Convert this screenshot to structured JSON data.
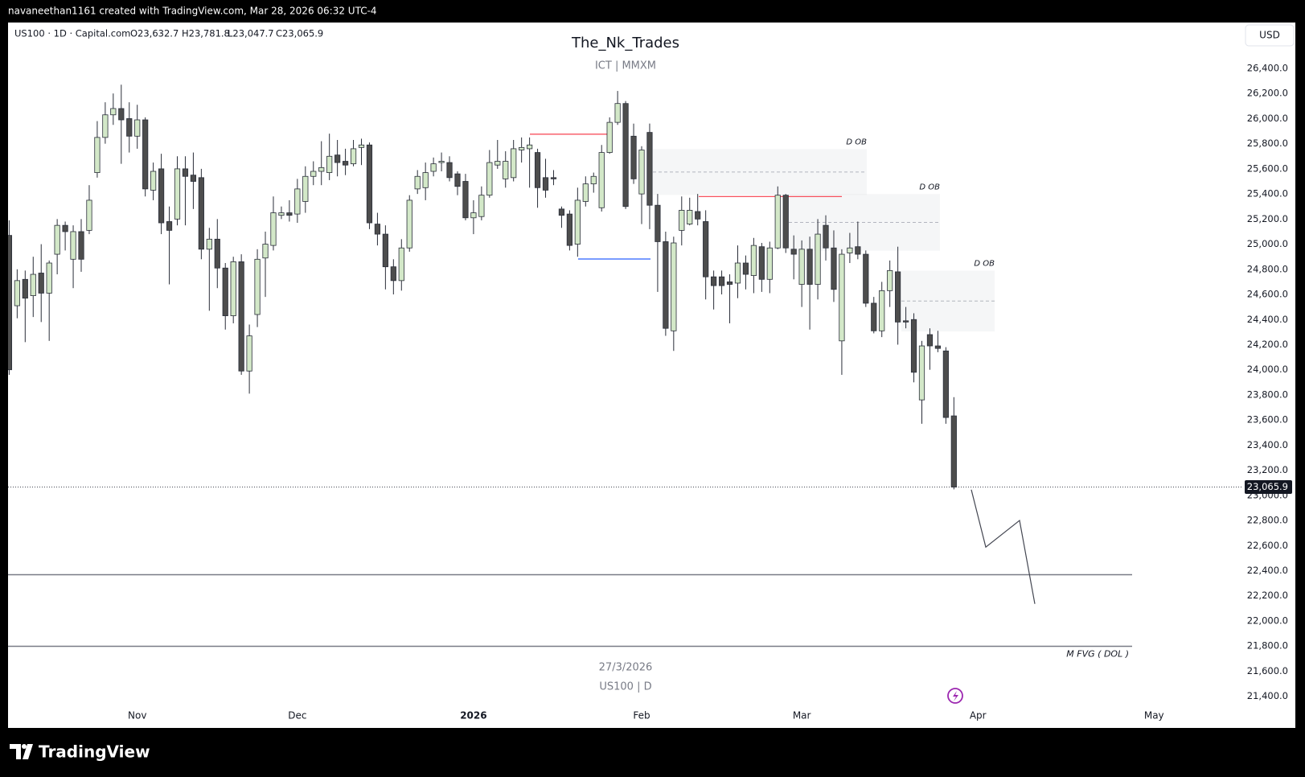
{
  "header": {
    "caption": "navaneethan1161 created with TradingView.com, Mar 28, 2026 06:32 UTC-4",
    "brand": "TradingView"
  },
  "chart_data": {
    "type": "candlestick",
    "symbol": "US100 · 1D · Capital.com",
    "last_bar_labels": [
      "O23,632.7",
      "H23,781.8",
      "L23,047.7",
      "C23,065.9"
    ],
    "title": "The_Nk_Trades",
    "subtitle": "ICT  |  MMXM",
    "date_caption": "27/3/2026",
    "symbol_caption": "US100 | D",
    "currency": "USD",
    "categories": [
      null,
      null,
      null,
      null,
      null,
      null,
      null,
      null,
      null,
      null,
      null,
      null,
      null,
      null,
      null,
      null,
      "Nov",
      null,
      null,
      null,
      null,
      null,
      null,
      null,
      null,
      null,
      null,
      null,
      null,
      null,
      null,
      null,
      null,
      null,
      null,
      null,
      "Dec",
      null,
      null,
      null,
      null,
      null,
      null,
      null,
      null,
      null,
      null,
      null,
      null,
      null,
      null,
      null,
      null,
      null,
      null,
      null,
      null,
      null,
      "2026",
      null,
      null,
      null,
      null,
      null,
      null,
      null,
      null,
      null,
      null,
      null,
      null,
      null,
      null,
      null,
      null,
      null,
      null,
      null,
      null,
      "Feb",
      null,
      null,
      null,
      null,
      null,
      null,
      null,
      null,
      null,
      null,
      null,
      null,
      null,
      null,
      null,
      null,
      null,
      null,
      null,
      "Mar",
      null,
      null,
      null,
      null,
      null,
      null,
      null,
      null,
      null,
      null,
      null,
      null,
      null,
      null,
      null,
      null,
      null,
      null,
      null,
      null,
      null,
      "Apr",
      null,
      null,
      null,
      null,
      null,
      null,
      null,
      null,
      null,
      null,
      null,
      null,
      null,
      null,
      null,
      null,
      null,
      null,
      null,
      null,
      null,
      "May"
    ],
    "open": [
      25070,
      24510,
      24720,
      24590,
      24770,
      24610,
      24920,
      25150,
      24880,
      25100,
      25110,
      25570,
      25850,
      26030,
      26080,
      26000,
      25860,
      25990,
      25430,
      25600,
      25180,
      25200,
      25600,
      25550,
      25530,
      24960,
      25040,
      24810,
      24430,
      24860,
      23990,
      24440,
      24890,
      24990,
      25230,
      25250,
      25240,
      25340,
      25540,
      25580,
      25570,
      25710,
      25660,
      25640,
      25770,
      25790,
      25160,
      25080,
      24820,
      24710,
      24970,
      25440,
      25450,
      25580,
      25650,
      25650,
      25560,
      25500,
      25210,
      25220,
      25390,
      25630,
      25520,
      25530,
      25750,
      25760,
      25730,
      25530,
      25530,
      25280,
      25240,
      25000,
      25340,
      25480,
      25290,
      25730,
      25970,
      26120,
      25860,
      25400,
      25890,
      25310,
      25020,
      24310,
      25110,
      25160,
      25260,
      25180,
      24740,
      24740,
      24700,
      24690,
      24850,
      24750,
      24980,
      24720,
      24970,
      25390,
      24960,
      24680,
      24960,
      24680,
      25150,
      24970,
      24230,
      24930,
      24980,
      24920,
      24530,
      24310,
      24630,
      24780,
      24390,
      24400,
      23760,
      24280,
      24190,
      24150,
      23632.7,
      null,
      null,
      null,
      null,
      null,
      null,
      null,
      null,
      null,
      null,
      null,
      null,
      null,
      null,
      null,
      null,
      null,
      null,
      null,
      null,
      null,
      null,
      null,
      null,
      null
    ],
    "high": [
      25190,
      24800,
      24790,
      24900,
      25000,
      24870,
      25200,
      25180,
      25150,
      25200,
      25470,
      25980,
      26130,
      26200,
      26270,
      26130,
      26110,
      26010,
      25650,
      25720,
      25300,
      25700,
      25700,
      25730,
      25600,
      25130,
      25200,
      24850,
      24900,
      24920,
      24360,
      24960,
      25100,
      25380,
      25300,
      25350,
      25520,
      25620,
      25660,
      25820,
      25880,
      25830,
      25760,
      25830,
      25840,
      25810,
      25250,
      25150,
      24880,
      25040,
      25390,
      25590,
      25650,
      25690,
      25730,
      25700,
      25580,
      25560,
      25350,
      25460,
      25750,
      25830,
      25740,
      25830,
      25850,
      25850,
      25760,
      25680,
      25590,
      25300,
      25270,
      25450,
      25540,
      25570,
      25790,
      26010,
      26220,
      26140,
      25960,
      25780,
      25960,
      25400,
      25100,
      25060,
      25380,
      25370,
      25400,
      25270,
      24790,
      24790,
      24760,
      24990,
      24910,
      25050,
      25010,
      25020,
      25460,
      25400,
      25070,
      25030,
      25060,
      25200,
      25230,
      25110,
      24960,
      25090,
      25180,
      24950,
      24580,
      24700,
      24870,
      24980,
      24500,
      24450,
      24230,
      24330,
      24310,
      24180,
      23781.8,
      null,
      null,
      null,
      null,
      null,
      null,
      null,
      null,
      null,
      null,
      null,
      null,
      null,
      null,
      null,
      null,
      null,
      null,
      null,
      null,
      null,
      null,
      null,
      null,
      null
    ],
    "low": [
      23960,
      24410,
      24220,
      24420,
      24380,
      24230,
      24760,
      24950,
      24650,
      24780,
      25080,
      25530,
      25800,
      25950,
      25640,
      25730,
      25760,
      25380,
      25350,
      25080,
      24680,
      25150,
      25150,
      25280,
      24880,
      24470,
      24650,
      24320,
      24370,
      23960,
      23810,
      24340,
      24580,
      24950,
      25200,
      25180,
      25170,
      25250,
      25470,
      25470,
      25510,
      25540,
      25550,
      25620,
      25630,
      25120,
      24990,
      24640,
      24600,
      24630,
      24940,
      25400,
      25350,
      25540,
      25580,
      25500,
      25390,
      25190,
      25080,
      25190,
      25370,
      25600,
      25450,
      25500,
      25650,
      25450,
      25290,
      25370,
      25470,
      25130,
      24950,
      24900,
      25300,
      25410,
      25260,
      25720,
      25950,
      25280,
      25480,
      25160,
      25120,
      24620,
      24270,
      24150,
      24990,
      25150,
      25150,
      24560,
      24480,
      24600,
      24370,
      24570,
      24640,
      24610,
      24620,
      24610,
      24960,
      24930,
      24720,
      24500,
      24320,
      24560,
      24870,
      24540,
      23960,
      24850,
      24880,
      24500,
      24290,
      24260,
      24500,
      24200,
      24330,
      23900,
      23570,
      24000,
      24140,
      23570,
      23047.7,
      null,
      null,
      null,
      null,
      null,
      null,
      null,
      null,
      null,
      null,
      null,
      null,
      null,
      null,
      null,
      null,
      null,
      null,
      null,
      null,
      null,
      null,
      null,
      null,
      null
    ],
    "close": [
      24000,
      24710,
      24570,
      24760,
      24610,
      24850,
      25150,
      25100,
      25100,
      24880,
      25350,
      25850,
      26030,
      26080,
      25990,
      25860,
      25990,
      25440,
      25580,
      25170,
      25110,
      25600,
      25540,
      25500,
      24960,
      25040,
      24810,
      24430,
      24860,
      23990,
      24270,
      24880,
      25000,
      25250,
      25250,
      25230,
      25440,
      25540,
      25580,
      25610,
      25700,
      25650,
      25630,
      25760,
      25790,
      25170,
      25080,
      24820,
      24710,
      24970,
      25350,
      25540,
      25570,
      25640,
      25660,
      25530,
      25460,
      25210,
      25250,
      25390,
      25650,
      25660,
      25660,
      25760,
      25770,
      25790,
      25450,
      25430,
      25520,
      25230,
      24990,
      25350,
      25480,
      25540,
      25730,
      25970,
      26120,
      25300,
      25520,
      25750,
      25310,
      25020,
      24330,
      25010,
      25270,
      25270,
      25200,
      24740,
      24670,
      24670,
      24680,
      24850,
      24760,
      24990,
      24720,
      24970,
      25390,
      24970,
      24920,
      24960,
      24680,
      25080,
      24970,
      24640,
      24920,
      24970,
      24920,
      24530,
      24310,
      24630,
      24790,
      24380,
      24380,
      23980,
      24190,
      24190,
      24170,
      23620,
      23065.9,
      null,
      null,
      null,
      null,
      null,
      null,
      null,
      null,
      null,
      null,
      null,
      null,
      null,
      null,
      null,
      null,
      null,
      null,
      null,
      null,
      null,
      null,
      null,
      null,
      null
    ],
    "bull_color": "#d3e8c8",
    "bear_color": "#4d4d4d",
    "last_price": {
      "value": 23065.9,
      "label": "23,065.9"
    },
    "ylim": [
      21148,
      26765
    ],
    "yticks": [
      {
        "value": 21400,
        "label": "21,400.0"
      },
      {
        "value": 21600,
        "label": "21,600.0"
      },
      {
        "value": 21800,
        "label": "21,800.0"
      },
      {
        "value": 22000,
        "label": "22,000.0"
      },
      {
        "value": 22200,
        "label": "22,200.0"
      },
      {
        "value": 22400,
        "label": "22,400.0"
      },
      {
        "value": 22600,
        "label": "22,600.0"
      },
      {
        "value": 22800,
        "label": "22,800.0"
      },
      {
        "value": 23000,
        "label": "23,000.0"
      },
      {
        "value": 23200,
        "label": "23,200.0"
      },
      {
        "value": 23400,
        "label": "23,400.0"
      },
      {
        "value": 23600,
        "label": "23,600.0"
      },
      {
        "value": 23800,
        "label": "23,800.0"
      },
      {
        "value": 24000,
        "label": "24,000.0"
      },
      {
        "value": 24200,
        "label": "24,200.0"
      },
      {
        "value": 24400,
        "label": "24,400.0"
      },
      {
        "value": 24600,
        "label": "24,600.0"
      },
      {
        "value": 24800,
        "label": "24,800.0"
      },
      {
        "value": 25000,
        "label": "25,000.0"
      },
      {
        "value": 25200,
        "label": "25,200.0"
      },
      {
        "value": 25400,
        "label": "25,400.0"
      },
      {
        "value": 25600,
        "label": "25,600.0"
      },
      {
        "value": 25800,
        "label": "25,800.0"
      },
      {
        "value": 26000,
        "label": "26,000.0"
      },
      {
        "value": 26200,
        "label": "26,200.0"
      },
      {
        "value": 26400,
        "label": "26,400.0"
      }
    ],
    "zones": [
      {
        "label": "D OB",
        "top": 25757,
        "bottom": 25392
      },
      {
        "label": "D OB",
        "top": 25399,
        "bottom": 24948
      },
      {
        "label": "D OB",
        "top": 24789,
        "bottom": 24305
      }
    ],
    "lines": [
      {
        "value": 25876,
        "color": "#f7525f"
      },
      {
        "value": 25379,
        "color": "#f7525f"
      },
      {
        "value": 24882,
        "color": "#2962ff"
      },
      {
        "value": 22368,
        "color": "#787b86"
      },
      {
        "value": 21798,
        "color": "#787b86",
        "label": "M FVG ( DOL )"
      }
    ],
    "projection": [
      23045,
      22588,
      22800,
      22136
    ]
  }
}
